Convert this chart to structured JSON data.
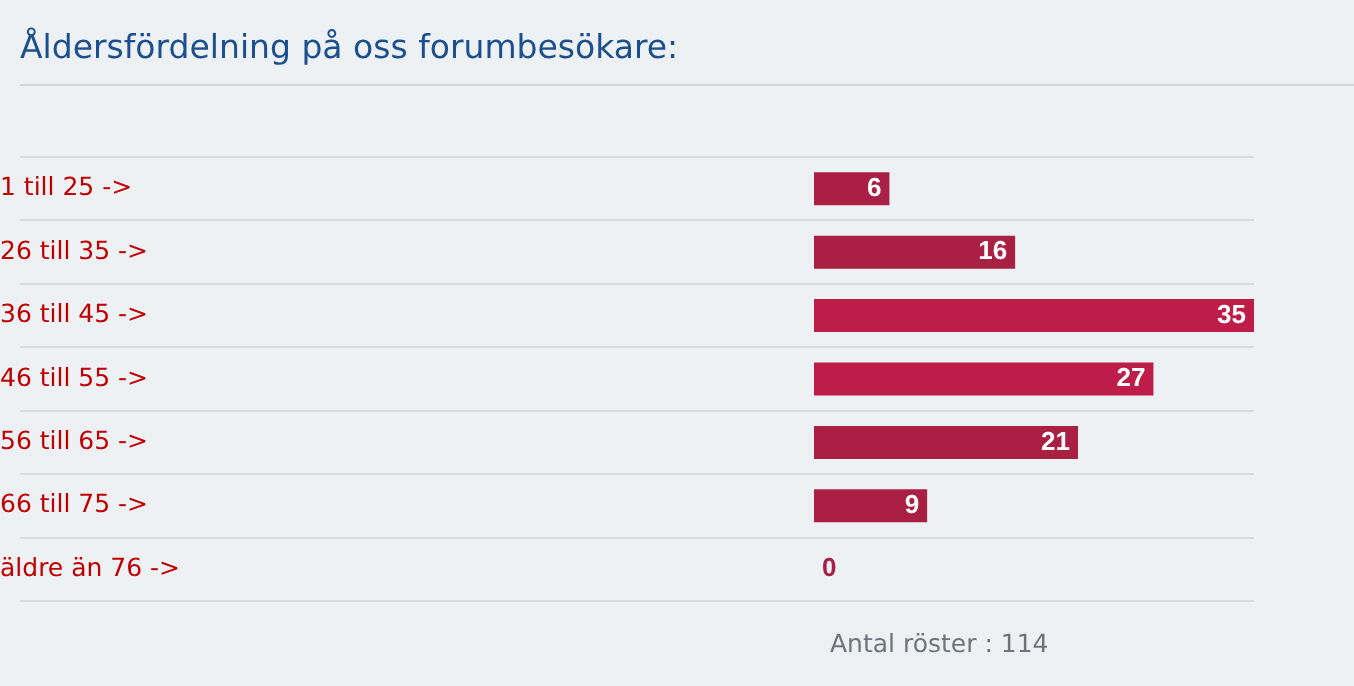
{
  "chart_data": {
    "type": "bar",
    "orientation": "horizontal",
    "title": "Åldersfördelning på oss forumbesökare:",
    "categories": [
      "1 till 25 ->",
      "26 till 35 ->",
      "36 till 45 ->",
      "46 till 55 ->",
      "56 till 65 ->",
      "66 till 75 ->",
      "äldre än 76 ->"
    ],
    "values": [
      6,
      16,
      35,
      27,
      21,
      9,
      0
    ],
    "colors": [
      "#a92044",
      "#a92044",
      "#bd1d48",
      "#bd1d48",
      "#a92044",
      "#a92044",
      "#a92044"
    ],
    "data_labels": true,
    "grid": "y",
    "tick_labels": "y",
    "annotations": [
      "Antal röster : 114"
    ]
  }
}
